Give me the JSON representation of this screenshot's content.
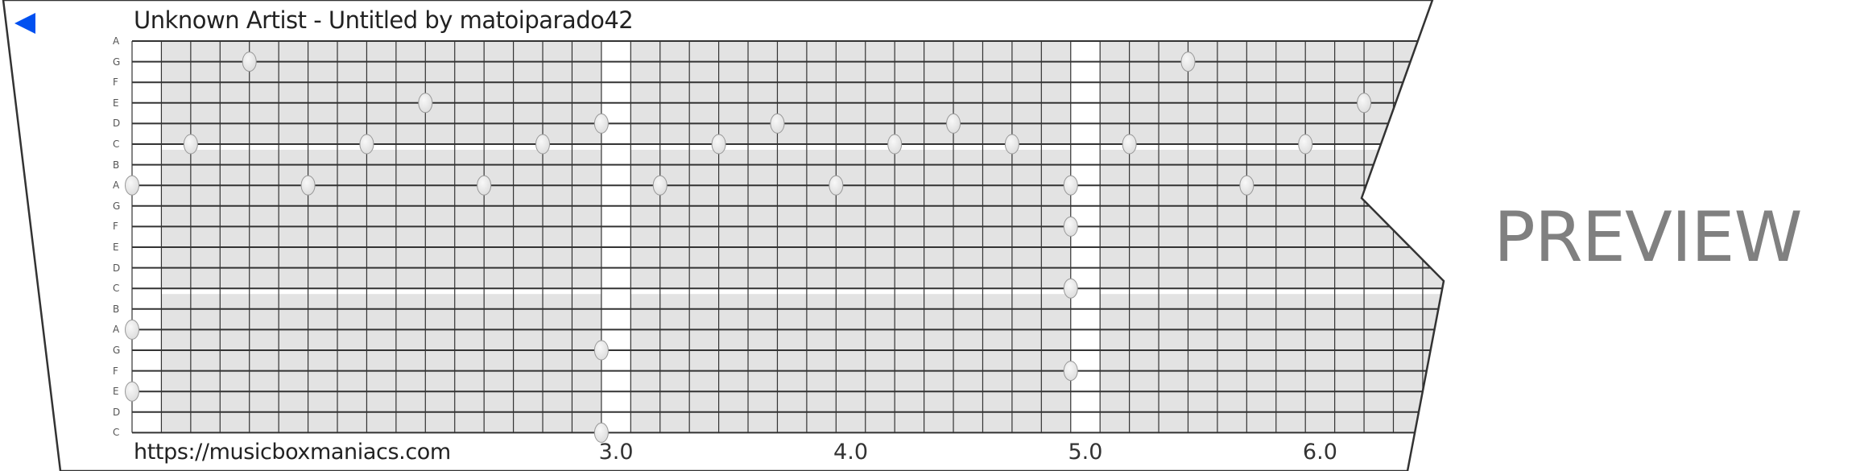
{
  "header": {
    "title": "Unknown Artist - Untitled by matoiparado42",
    "back_icon": "left-triangle-icon",
    "back_color": "#0050f0"
  },
  "footer": {
    "url": "https://musicboxmaniacs.com"
  },
  "watermark": "PREVIEW",
  "grid": {
    "row_labels": [
      "A",
      "G",
      "F",
      "E",
      "D",
      "C",
      "B",
      "A",
      "G",
      "F",
      "E",
      "D",
      "C",
      "B",
      "A",
      "G",
      "F",
      "E",
      "D",
      "C"
    ],
    "pitches": [
      "A5",
      "G5",
      "F5",
      "E5",
      "D5",
      "C5",
      "B4",
      "A4",
      "G4",
      "F4",
      "E4",
      "D4",
      "C4",
      "B3",
      "A3",
      "G3",
      "F3",
      "E3",
      "D3",
      "C3"
    ],
    "steps_per_beat": 8,
    "first_beat": 1.0,
    "beat_labels": [
      {
        "beat": 3.0,
        "label": "3.0"
      },
      {
        "beat": 4.0,
        "label": "4.0"
      },
      {
        "beat": 5.0,
        "label": "5.0"
      },
      {
        "beat": 6.0,
        "label": "6.0"
      }
    ],
    "fill_color": "#e3e3e3",
    "line_color": "#333333",
    "notes": [
      {
        "beat": 1.0,
        "pitch": "A4"
      },
      {
        "beat": 1.0,
        "pitch": "A3"
      },
      {
        "beat": 1.0,
        "pitch": "E3"
      },
      {
        "beat": 1.25,
        "pitch": "C5"
      },
      {
        "beat": 1.5,
        "pitch": "G5"
      },
      {
        "beat": 1.75,
        "pitch": "A4"
      },
      {
        "beat": 2.0,
        "pitch": "C5"
      },
      {
        "beat": 2.25,
        "pitch": "E5"
      },
      {
        "beat": 2.5,
        "pitch": "A4"
      },
      {
        "beat": 2.75,
        "pitch": "C5"
      },
      {
        "beat": 3.0,
        "pitch": "D5"
      },
      {
        "beat": 3.0,
        "pitch": "G3"
      },
      {
        "beat": 3.0,
        "pitch": "C3"
      },
      {
        "beat": 3.25,
        "pitch": "A4"
      },
      {
        "beat": 3.5,
        "pitch": "C5"
      },
      {
        "beat": 3.75,
        "pitch": "D5"
      },
      {
        "beat": 4.0,
        "pitch": "A4"
      },
      {
        "beat": 4.25,
        "pitch": "C5"
      },
      {
        "beat": 4.5,
        "pitch": "D5"
      },
      {
        "beat": 4.75,
        "pitch": "C5"
      },
      {
        "beat": 5.0,
        "pitch": "A4"
      },
      {
        "beat": 5.0,
        "pitch": "F4"
      },
      {
        "beat": 5.0,
        "pitch": "C4"
      },
      {
        "beat": 5.0,
        "pitch": "F3"
      },
      {
        "beat": 5.25,
        "pitch": "C5"
      },
      {
        "beat": 5.5,
        "pitch": "G5"
      },
      {
        "beat": 5.75,
        "pitch": "A4"
      },
      {
        "beat": 6.0,
        "pitch": "C5"
      },
      {
        "beat": 6.25,
        "pitch": "E5"
      }
    ]
  }
}
